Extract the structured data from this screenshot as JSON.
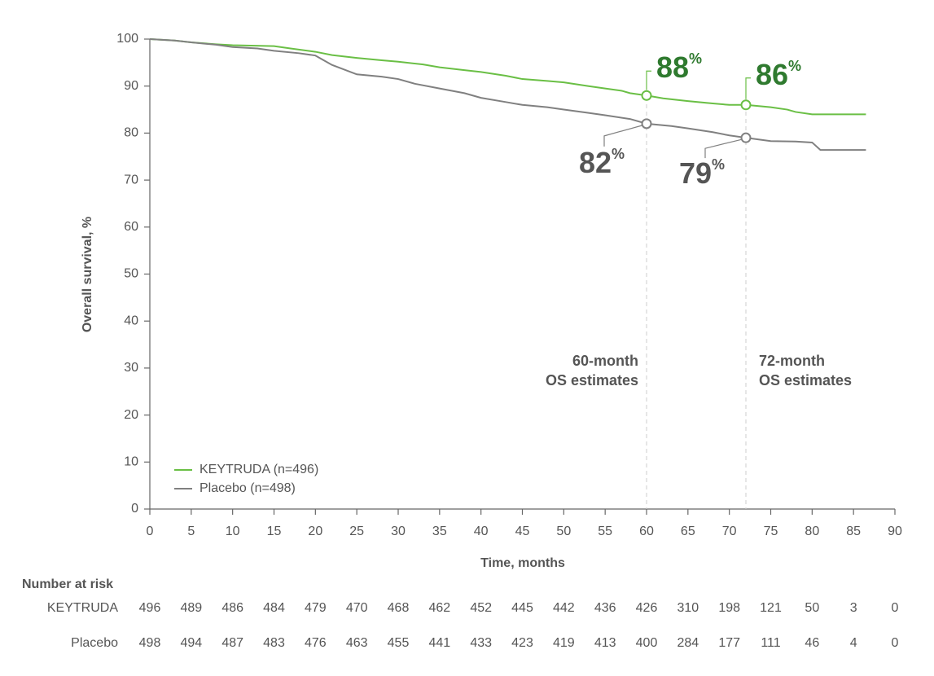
{
  "chart_data": {
    "type": "line",
    "xlabel": "Time, months",
    "ylabel": "Overall survival, %",
    "xlim": [
      0,
      90
    ],
    "xticks": [
      0,
      5,
      10,
      15,
      20,
      25,
      30,
      35,
      40,
      45,
      50,
      55,
      60,
      65,
      70,
      75,
      80,
      85,
      90
    ],
    "ylim": [
      0,
      100
    ],
    "yticks": [
      0,
      10,
      20,
      30,
      40,
      50,
      60,
      70,
      80,
      90,
      100
    ],
    "grid": false,
    "legend": "lower left",
    "series": [
      {
        "name": "KEYTRUDA (n=496)",
        "color": "#6abf45",
        "text_color": "#2f7a2f",
        "x": [
          0,
          3,
          5,
          8,
          10,
          15,
          17,
          20,
          22,
          25,
          28,
          30,
          33,
          35,
          38,
          40,
          43,
          45,
          48,
          50,
          53,
          55,
          57,
          58,
          60,
          62,
          65,
          68,
          70,
          72,
          75,
          77,
          78,
          80,
          86.5
        ],
        "values": [
          100,
          99.7,
          99.3,
          98.9,
          98.7,
          98.5,
          98,
          97.3,
          96.6,
          96,
          95.5,
          95.2,
          94.6,
          94,
          93.4,
          93,
          92.2,
          91.5,
          91.1,
          90.8,
          90,
          89.5,
          89,
          88.5,
          88,
          87.4,
          86.8,
          86.3,
          86,
          86,
          85.5,
          85,
          84.5,
          84,
          84
        ]
      },
      {
        "name": "Placebo (n=498)",
        "color": "#808080",
        "text_color": "#555555",
        "x": [
          0,
          3,
          5,
          8,
          10,
          13,
          15,
          18,
          20,
          22,
          25,
          28,
          30,
          32,
          35,
          38,
          40,
          43,
          45,
          48,
          50,
          53,
          55,
          58,
          60,
          63,
          65,
          68,
          70,
          72,
          75,
          78,
          80,
          81,
          86.5
        ],
        "values": [
          100,
          99.7,
          99.3,
          98.8,
          98.3,
          98,
          97.5,
          97,
          96.5,
          94.5,
          92.5,
          92,
          91.5,
          90.5,
          89.5,
          88.5,
          87.5,
          86.6,
          86,
          85.5,
          85,
          84.3,
          83.8,
          83,
          82,
          81.5,
          81,
          80.2,
          79.5,
          79,
          78.3,
          78.2,
          78,
          76.4,
          76.4
        ]
      }
    ],
    "estimates": [
      {
        "series": 0,
        "x": 60,
        "value": 88,
        "value_label": "88%"
      },
      {
        "series": 0,
        "x": 72,
        "value": 86,
        "value_label": "86%"
      },
      {
        "series": 1,
        "x": 60,
        "value": 82,
        "value_label": "82%"
      },
      {
        "series": 1,
        "x": 72,
        "value": 79,
        "value_label": "79%"
      }
    ],
    "reference_lines": [
      {
        "x": 60,
        "lines": [
          "60-month",
          "OS estimates"
        ]
      },
      {
        "x": 72,
        "lines": [
          "72-month",
          "OS estimates"
        ]
      }
    ],
    "risk_table": {
      "title": "Number at risk",
      "rows": [
        {
          "name": "KEYTRUDA",
          "values": [
            496,
            489,
            486,
            484,
            479,
            470,
            468,
            462,
            452,
            445,
            442,
            436,
            426,
            310,
            198,
            121,
            50,
            3,
            0
          ]
        },
        {
          "name": "Placebo",
          "values": [
            498,
            494,
            487,
            483,
            476,
            463,
            455,
            441,
            433,
            423,
            419,
            413,
            400,
            284,
            177,
            111,
            46,
            4,
            0
          ]
        }
      ]
    }
  }
}
